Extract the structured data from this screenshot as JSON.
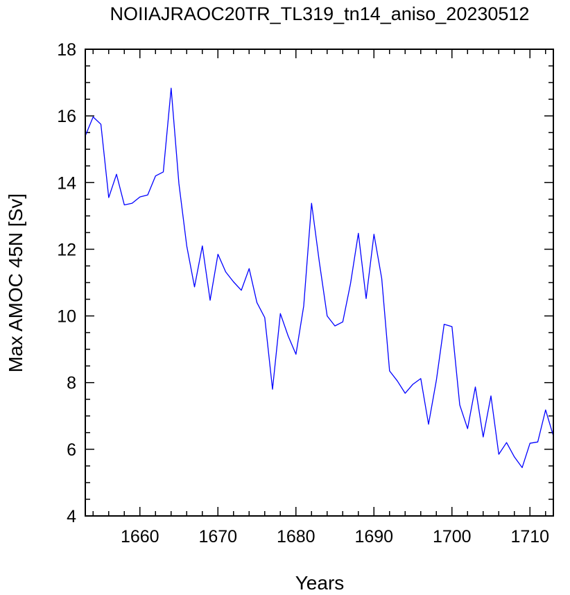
{
  "chart_data": {
    "type": "line",
    "title": "NOIIAJRAOC20TR_TL319_tn14_aniso_20230512",
    "xlabel": "Years",
    "ylabel": "Max AMOC 45N [Sv]",
    "xlim": [
      1653,
      1713
    ],
    "ylim": [
      4,
      18
    ],
    "xticks": [
      1660,
      1670,
      1680,
      1690,
      1700,
      1710
    ],
    "yticks": [
      4,
      6,
      8,
      10,
      12,
      14,
      16,
      18
    ],
    "grid": false,
    "series": [
      {
        "color": "#0000ff",
        "x": [
          1653,
          1654,
          1655,
          1656,
          1657,
          1658,
          1659,
          1660,
          1661,
          1662,
          1663,
          1664,
          1665,
          1666,
          1667,
          1668,
          1669,
          1670,
          1671,
          1672,
          1673,
          1674,
          1675,
          1676,
          1677,
          1678,
          1679,
          1680,
          1681,
          1682,
          1683,
          1684,
          1685,
          1686,
          1687,
          1688,
          1689,
          1690,
          1691,
          1692,
          1693,
          1694,
          1695,
          1696,
          1697,
          1698,
          1699,
          1700,
          1701,
          1702,
          1703,
          1704,
          1705,
          1706,
          1707,
          1708,
          1709,
          1710,
          1711,
          1712,
          1713
        ],
        "y": [
          15.4,
          15.97,
          15.75,
          13.55,
          14.25,
          13.33,
          13.38,
          13.57,
          13.63,
          14.2,
          14.32,
          16.83,
          13.97,
          12.1,
          10.87,
          12.1,
          10.47,
          11.85,
          11.32,
          11.02,
          10.77,
          11.42,
          10.4,
          9.95,
          7.8,
          10.07,
          9.4,
          8.85,
          10.3,
          13.38,
          11.62,
          10.0,
          9.7,
          9.82,
          10.97,
          12.48,
          10.52,
          12.45,
          11.12,
          8.35,
          8.05,
          7.68,
          7.95,
          8.12,
          6.75,
          8.07,
          9.75,
          9.68,
          7.33,
          6.62,
          7.87,
          6.37,
          7.6,
          5.85,
          6.2,
          5.77,
          5.45,
          6.18,
          6.22,
          7.18,
          6.4
        ]
      }
    ]
  }
}
